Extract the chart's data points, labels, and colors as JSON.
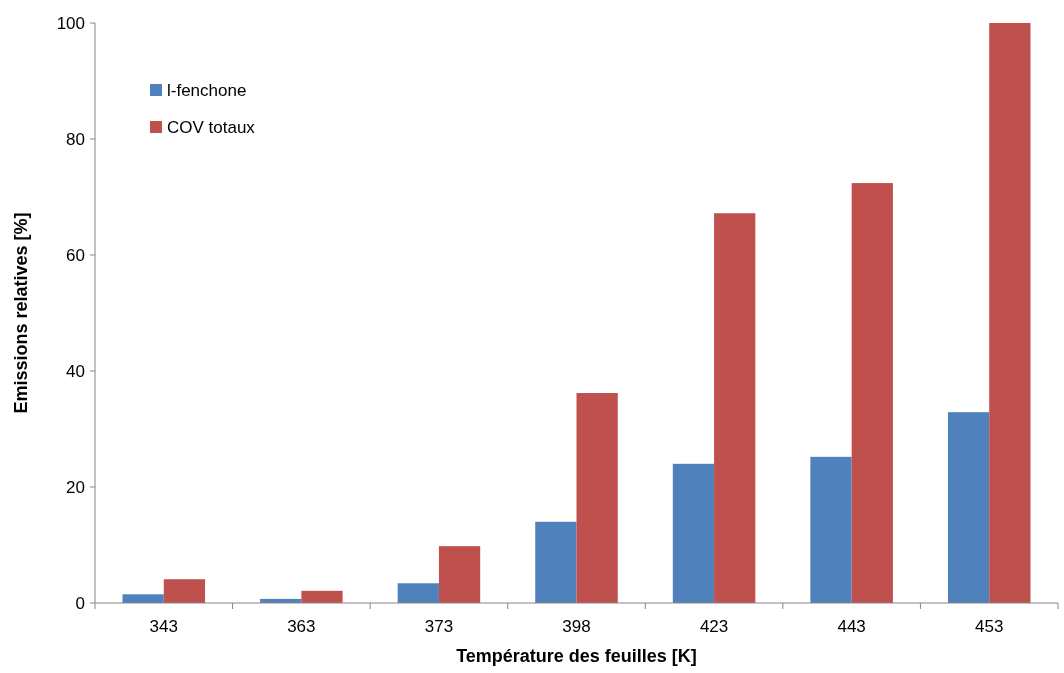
{
  "chart_data": {
    "type": "bar",
    "xlabel": "Température des feuilles [K]",
    "ylabel": "Emissions relatives [%]",
    "categories": [
      "343",
      "363",
      "373",
      "398",
      "423",
      "443",
      "453"
    ],
    "series": [
      {
        "name": "l-fenchone",
        "color": "#4f81bd",
        "values": [
          1.5,
          0.7,
          3.4,
          14,
          24,
          25.2,
          32.9
        ]
      },
      {
        "name": "COV totaux",
        "color": "#c0504d",
        "values": [
          4.1,
          2.1,
          9.8,
          36.2,
          67.2,
          72.4,
          100
        ]
      }
    ],
    "ylim": [
      0,
      100
    ],
    "yticks": [
      0,
      20,
      40,
      60,
      80,
      100
    ],
    "grid": false,
    "legend": "top left"
  }
}
